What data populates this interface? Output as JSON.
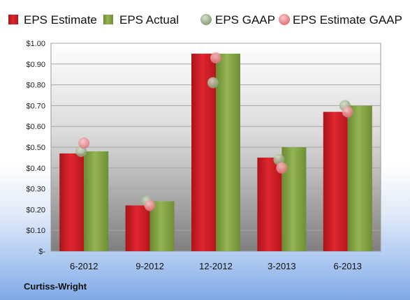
{
  "chart_data": {
    "type": "bar",
    "categories": [
      "6-2012",
      "9-2012",
      "12-2012",
      "3-2013",
      "6-2013"
    ],
    "series": [
      {
        "name": "EPS Estimate",
        "kind": "bar",
        "color": "#cc1f26",
        "values": [
          0.47,
          0.22,
          0.95,
          0.45,
          0.67
        ]
      },
      {
        "name": "EPS Actual",
        "kind": "bar",
        "color": "#7f9f3f",
        "values": [
          0.48,
          0.24,
          0.95,
          0.5,
          0.7
        ]
      },
      {
        "name": "EPS GAAP",
        "kind": "point",
        "color": "#8aa57a",
        "values": [
          0.48,
          0.24,
          0.81,
          0.44,
          0.7
        ]
      },
      {
        "name": "EPS Estimate GAAP",
        "kind": "point",
        "color": "#e9848a",
        "values": [
          0.52,
          0.22,
          0.93,
          0.4,
          0.67
        ]
      }
    ],
    "yticks": [
      "$-",
      "$0.10",
      "$0.20",
      "$0.30",
      "$0.40",
      "$0.50",
      "$0.60",
      "$0.70",
      "$0.80",
      "$0.90",
      "$1.00"
    ],
    "ylim": [
      0,
      1.0
    ],
    "grid": true,
    "legend_position": "top",
    "footer_label": "Curtiss-Wright"
  }
}
